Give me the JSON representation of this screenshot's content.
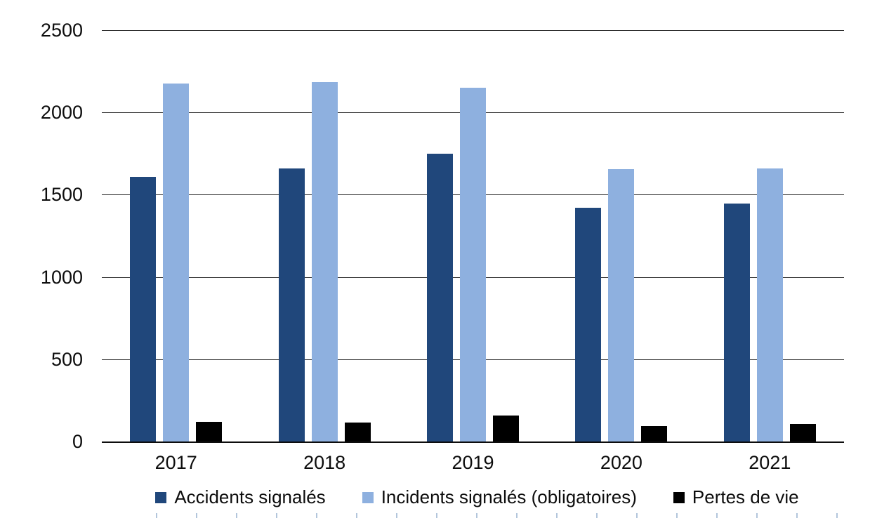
{
  "chart_data": {
    "type": "bar",
    "title": "",
    "xlabel": "",
    "ylabel": "",
    "categories": [
      "2017",
      "2018",
      "2019",
      "2020",
      "2021"
    ],
    "series": [
      {
        "key": "accidents-signales",
        "name": "Accidents signalés",
        "color": "#20477B",
        "values": [
          1610,
          1660,
          1750,
          1420,
          1445
        ]
      },
      {
        "key": "incidents-signales",
        "name": "Incidents signalés (obligatoires)",
        "color": "#8EB0DF",
        "values": [
          2175,
          2185,
          2150,
          1655,
          1660
        ]
      },
      {
        "key": "pertes-de-vie",
        "name": "Pertes de vie",
        "color": "#000000",
        "values": [
          120,
          115,
          160,
          95,
          105
        ]
      }
    ],
    "ylim": [
      0,
      2500
    ],
    "yticks": [
      0,
      500,
      1000,
      1500,
      2000,
      2500
    ],
    "ytick_labels": [
      "0",
      "500",
      "1000",
      "1500",
      "2000",
      "2500"
    ],
    "grid": "horizontal",
    "legend_position": "bottom"
  },
  "colors": {
    "background": "#FFFFFF",
    "gridline": "#262626",
    "axis": "#0D0D0D",
    "text": "#0D0D0D",
    "table_edge_tick": "#B3C6DC"
  }
}
